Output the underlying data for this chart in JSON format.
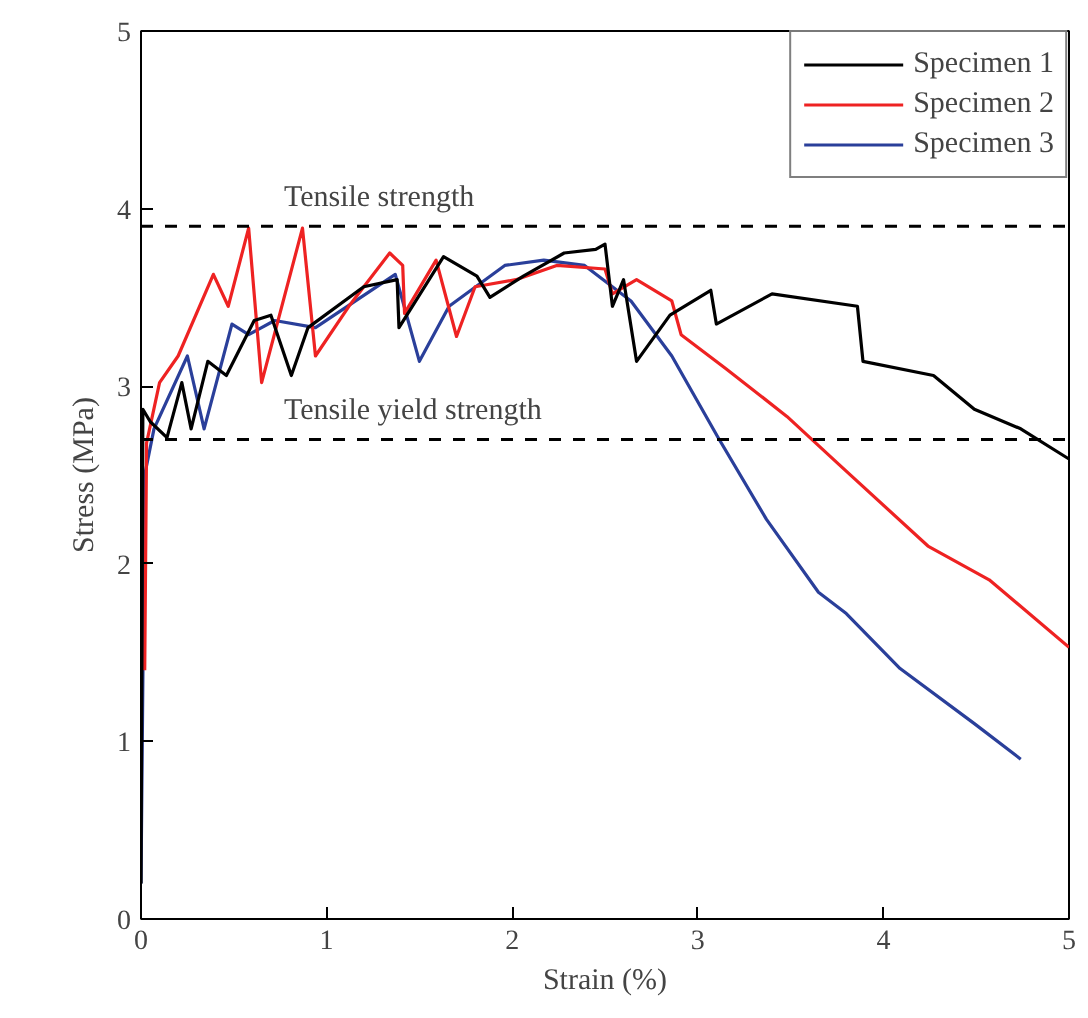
{
  "chart_data": {
    "type": "line",
    "xlabel": "Strain (%)",
    "ylabel": "Stress (MPa)",
    "xlim": [
      0,
      5
    ],
    "ylim": [
      0,
      5
    ],
    "xticks": [
      0,
      1,
      2,
      3,
      4,
      5
    ],
    "yticks": [
      0,
      1,
      2,
      3,
      4,
      5
    ],
    "grid": false,
    "legend": "top right",
    "line_style": "solid",
    "marker": "none",
    "ref_lines": [
      {
        "axis": "y",
        "value": 3.9,
        "label": "Tensile strength",
        "color": "#000000",
        "line_style": "dashed"
      },
      {
        "axis": "y",
        "value": 2.7,
        "label": "Tensile yield strength",
        "color": "#000000",
        "line_style": "dashed"
      }
    ],
    "series": [
      {
        "name": "Specimen 1",
        "color": "#000000",
        "x": [
          0,
          0.01,
          0.05,
          0.14,
          0.22,
          0.27,
          0.36,
          0.46,
          0.61,
          0.7,
          0.81,
          0.9,
          1.2,
          1.38,
          1.39,
          1.63,
          1.81,
          1.88,
          2.06,
          2.28,
          2.45,
          2.5,
          2.54,
          2.6,
          2.67,
          2.85,
          3.07,
          3.1,
          3.4,
          3.86,
          3.89,
          4.27,
          4.49,
          4.74,
          5.0
        ],
        "values": [
          0.2,
          2.87,
          2.8,
          2.71,
          3.02,
          2.76,
          3.14,
          3.06,
          3.37,
          3.4,
          3.06,
          3.33,
          3.56,
          3.6,
          3.33,
          3.73,
          3.62,
          3.5,
          3.62,
          3.75,
          3.77,
          3.8,
          3.45,
          3.6,
          3.14,
          3.4,
          3.54,
          3.35,
          3.52,
          3.45,
          3.14,
          3.06,
          2.87,
          2.76,
          2.59
        ]
      },
      {
        "name": "Specimen 2",
        "color": "#ee2222",
        "x": [
          0.02,
          0.03,
          0.1,
          0.2,
          0.39,
          0.47,
          0.58,
          0.65,
          0.87,
          0.94,
          1.12,
          1.34,
          1.41,
          1.42,
          1.59,
          1.7,
          1.8,
          2.02,
          2.24,
          2.5,
          2.54,
          2.67,
          2.86,
          2.91,
          3.15,
          3.48,
          3.76,
          4.24,
          4.57,
          5.0
        ],
        "values": [
          1.4,
          2.68,
          3.02,
          3.17,
          3.63,
          3.45,
          3.89,
          3.02,
          3.89,
          3.17,
          3.45,
          3.75,
          3.68,
          3.41,
          3.71,
          3.28,
          3.56,
          3.6,
          3.68,
          3.66,
          3.52,
          3.6,
          3.48,
          3.29,
          3.1,
          2.83,
          2.56,
          2.1,
          1.91,
          1.53
        ]
      },
      {
        "name": "Specimen 3",
        "color": "#2a3f9a",
        "x": [
          0,
          0.02,
          0.07,
          0.25,
          0.34,
          0.49,
          0.58,
          0.72,
          0.94,
          1.37,
          1.5,
          1.66,
          1.96,
          2.17,
          2.39,
          2.64,
          2.86,
          3.11,
          3.37,
          3.65,
          3.8,
          4.09,
          4.49,
          4.74
        ],
        "values": [
          0.2,
          2.5,
          2.76,
          3.17,
          2.76,
          3.35,
          3.29,
          3.37,
          3.33,
          3.63,
          3.14,
          3.45,
          3.68,
          3.71,
          3.68,
          3.48,
          3.17,
          2.71,
          2.25,
          1.84,
          1.72,
          1.41,
          1.1,
          0.9
        ]
      }
    ]
  }
}
